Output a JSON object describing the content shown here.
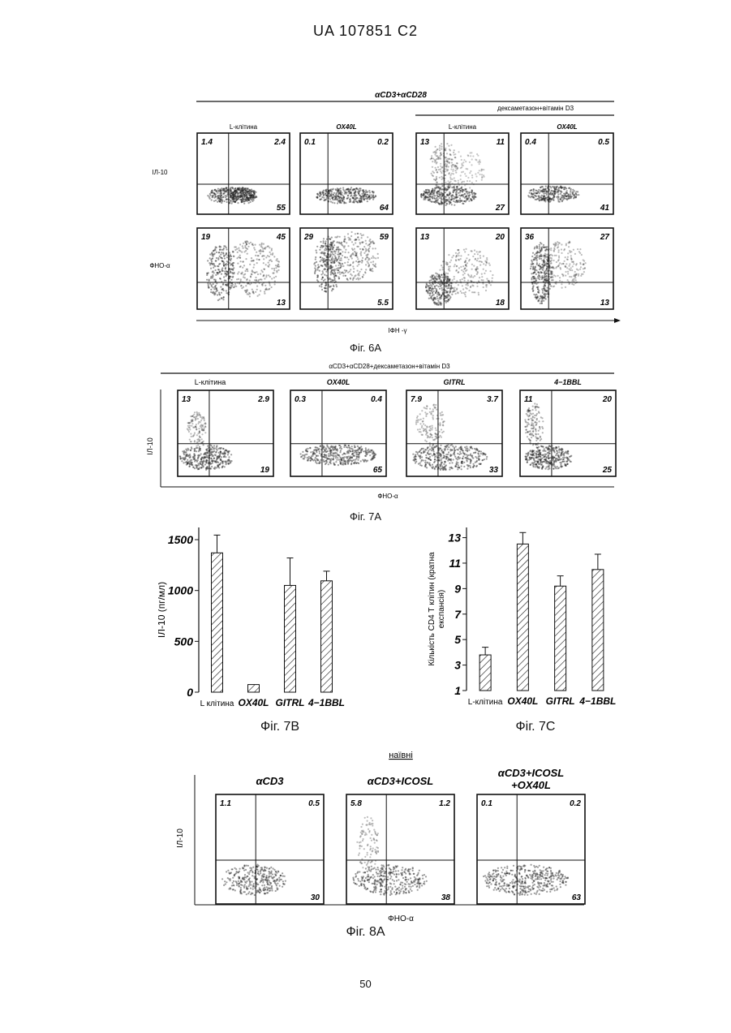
{
  "header": "UA 107851 C2",
  "page_number": "50",
  "fig6a": {
    "title": "αCD3+αCD28",
    "subtitle": "дексаметазон+вітамін D3",
    "cols": [
      "L-клітина",
      "OX40L",
      "L-клітина",
      "OX40L"
    ],
    "row_labels": [
      "ІЛ-10",
      "ФНО-α"
    ],
    "xaxis": "ІФН -γ",
    "caption": "Фіг. 6А",
    "quadrants": [
      [
        [
          "1.4",
          "2.4",
          "55"
        ],
        [
          "0.1",
          "0.2",
          "64"
        ],
        [
          "13",
          "11",
          "27"
        ],
        [
          "0.4",
          "0.5",
          "41"
        ]
      ],
      [
        [
          "19",
          "45",
          "13"
        ],
        [
          "29",
          "59",
          "5.5"
        ],
        [
          "13",
          "20",
          "18"
        ],
        [
          "36",
          "27",
          "13"
        ]
      ]
    ]
  },
  "fig7a": {
    "title": "αCD3+αCD28+дексаметазон+вітамін D3",
    "cols": [
      "L-клітина",
      "OX40L",
      "GITRL",
      "4−1BBL"
    ],
    "ylabel": "ІЛ-10",
    "xaxis": "ФНО-α",
    "caption": "Фіг. 7А",
    "quadrants": [
      [
        "13",
        "2.9",
        "19"
      ],
      [
        "0.3",
        "0.4",
        "65"
      ],
      [
        "7.9",
        "3.7",
        "33"
      ],
      [
        "11",
        "20",
        "25"
      ]
    ]
  },
  "fig8a": {
    "title": "наївні",
    "cols": [
      "αCD3",
      "αCD3+ICOSL",
      "αCD3+ICOSL\n+OX40L"
    ],
    "col_line1": [
      "αCD3",
      "αCD3+ICOSL",
      "αCD3+ICOSL"
    ],
    "col_line2": [
      "",
      "",
      "+OX40L"
    ],
    "ylabel": "ІЛ-10",
    "xaxis": "ФНО-α",
    "caption": "Фіг. 8А",
    "quadrants": [
      [
        "1.1",
        "0.5",
        "30"
      ],
      [
        "5.8",
        "1.2",
        "38"
      ],
      [
        "0.1",
        "0.2",
        "63"
      ]
    ]
  },
  "chart_data": [
    {
      "type": "bar",
      "categories": [
        "L клітина",
        "OX40L",
        "GITRL",
        "4−1BBL"
      ],
      "values": [
        1370,
        75,
        1050,
        1095
      ],
      "errors": [
        175,
        0,
        270,
        95
      ],
      "ylabel": "ІЛ-10 (пг/мл)",
      "ylim": [
        0,
        1620
      ],
      "yticks": [
        "0",
        "500",
        "1000",
        "1500"
      ],
      "caption": "Фіг. 7В"
    },
    {
      "type": "bar",
      "categories": [
        "L-клітина",
        "OX40L",
        "GITRL",
        "4−1BBL"
      ],
      "values": [
        3.8,
        12.5,
        9.2,
        10.5
      ],
      "errors": [
        0.6,
        0.9,
        0.8,
        1.2
      ],
      "ylabel": "Кількість CD4 Т клітин (кратна експансія)",
      "ylim": [
        1,
        13.8
      ],
      "yticks": [
        "1",
        "3",
        "5",
        "7",
        "9",
        "11",
        "13"
      ],
      "caption": "Фіг. 7С"
    }
  ]
}
